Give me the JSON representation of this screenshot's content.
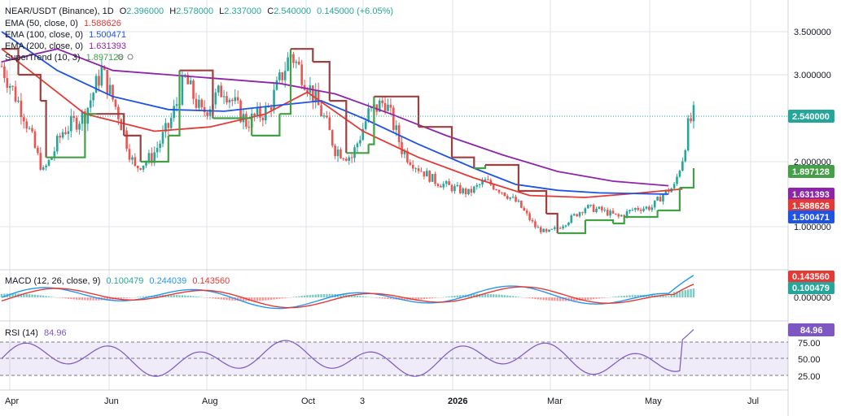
{
  "header": {
    "symbol": "NEAR/USDT (Binance), 1D",
    "ohlc": {
      "o_label": "O",
      "o": "2.396000",
      "h_label": "H",
      "h": "2.578000",
      "l_label": "L",
      "l": "2.337000",
      "c_label": "C",
      "c": "2.540000",
      "chg": "0.145000 (+6.05%)"
    }
  },
  "colors": {
    "up": "#26a69a",
    "down": "#ef5350",
    "ema50": "#e53935",
    "ema100": "#1e53e5",
    "ema200": "#8e24aa",
    "st_up": "#43a047",
    "st_down": "#9c4040",
    "macd": "#2196f3",
    "signal": "#e53935",
    "rsi": "#7e57c2",
    "grid": "#e0e3eb"
  },
  "chart_data": [
    {
      "type": "candlestick",
      "title": "NEAR/USDT (Binance), 1D",
      "x_tick_labels": [
        "Apr",
        "Jun",
        "Aug",
        "Oct",
        "3",
        "2026",
        "Mar",
        "May",
        "Jul"
      ],
      "y_tick_labels": [
        "3.500000",
        "3.000000",
        "2.000000",
        "1.000000"
      ],
      "ylim": [
        0.7,
        3.7
      ],
      "last_price": "2.540000",
      "indicators": [
        {
          "name": "EMA (50, close, 0)",
          "value": "1.588626",
          "color": "#e53935",
          "points": [
            [
              0,
              3.3
            ],
            [
              10,
              3.05
            ],
            [
              30,
              2.55
            ],
            [
              55,
              2.35
            ],
            [
              75,
              2.4
            ],
            [
              95,
              2.55
            ],
            [
              110,
              2.8
            ],
            [
              130,
              2.35
            ],
            [
              150,
              2.05
            ],
            [
              170,
              1.75
            ],
            [
              190,
              1.48
            ],
            [
              210,
              1.45
            ],
            [
              230,
              1.52
            ],
            [
              245,
              1.58
            ]
          ]
        },
        {
          "name": "EMA (100, close, 0)",
          "value": "1.500471",
          "color": "#1e53e5",
          "points": [
            [
              0,
              3.5
            ],
            [
              20,
              3.05
            ],
            [
              40,
              2.75
            ],
            [
              60,
              2.6
            ],
            [
              80,
              2.58
            ],
            [
              100,
              2.65
            ],
            [
              115,
              2.7
            ],
            [
              130,
              2.5
            ],
            [
              150,
              2.2
            ],
            [
              170,
              1.9
            ],
            [
              185,
              1.65
            ],
            [
              200,
              1.56
            ],
            [
              215,
              1.52
            ],
            [
              240,
              1.5
            ]
          ]
        },
        {
          "name": "EMA (200, close, 0)",
          "value": "1.631393",
          "color": "#8e24aa",
          "points": [
            [
              0,
              3.85
            ],
            [
              20,
              3.3
            ],
            [
              40,
              3.05
            ],
            [
              60,
              3.0
            ],
            [
              80,
              2.95
            ],
            [
              100,
              2.9
            ],
            [
              120,
              2.78
            ],
            [
              140,
              2.55
            ],
            [
              160,
              2.3
            ],
            [
              180,
              2.08
            ],
            [
              200,
              1.85
            ],
            [
              220,
              1.7
            ],
            [
              240,
              1.63
            ]
          ]
        },
        {
          "name": "SuperTrend (10, 3)",
          "value": "1.897128",
          "color": "#43a047"
        }
      ],
      "candles_summary": "daily candles from Mar 2025 to May 2026, range approx 0.75 to 3.35, last close 2.540000"
    },
    {
      "type": "line",
      "name": "MACD (12, 26, close, 9)",
      "values_text": [
        "0.100479",
        "0.244039",
        "0.143560"
      ],
      "y_tick_labels": [
        "0.000000"
      ],
      "tags": [
        "0.143560",
        "0.100479"
      ]
    },
    {
      "type": "line",
      "name": "RSI (14)",
      "value": "84.96",
      "y_tick_labels": [
        "75.00",
        "50.00",
        "25.00"
      ],
      "levels": [
        70,
        50,
        30
      ]
    }
  ],
  "legend": {
    "ema50_label": "EMA (50, close, 0)",
    "ema50_val": "1.588626",
    "ema100_label": "EMA (100, close, 0)",
    "ema100_val": "1.500471",
    "ema200_label": "EMA (200, close, 0)",
    "ema200_val": "1.631393",
    "st_label": "SuperTrend (10, 3)",
    "st_val": "1.897128",
    "macd_label": "MACD (12, 26, close, 9)",
    "macd_v1": "0.100479",
    "macd_v2": "0.244039",
    "macd_v3": "0.143560",
    "rsi_label": "RSI (14)",
    "rsi_val": "84.96"
  },
  "price_tags": {
    "last": "2.540000",
    "st": "1.897128",
    "ema200": "1.631393",
    "ema50": "1.588626",
    "ema100": "1.500471"
  }
}
